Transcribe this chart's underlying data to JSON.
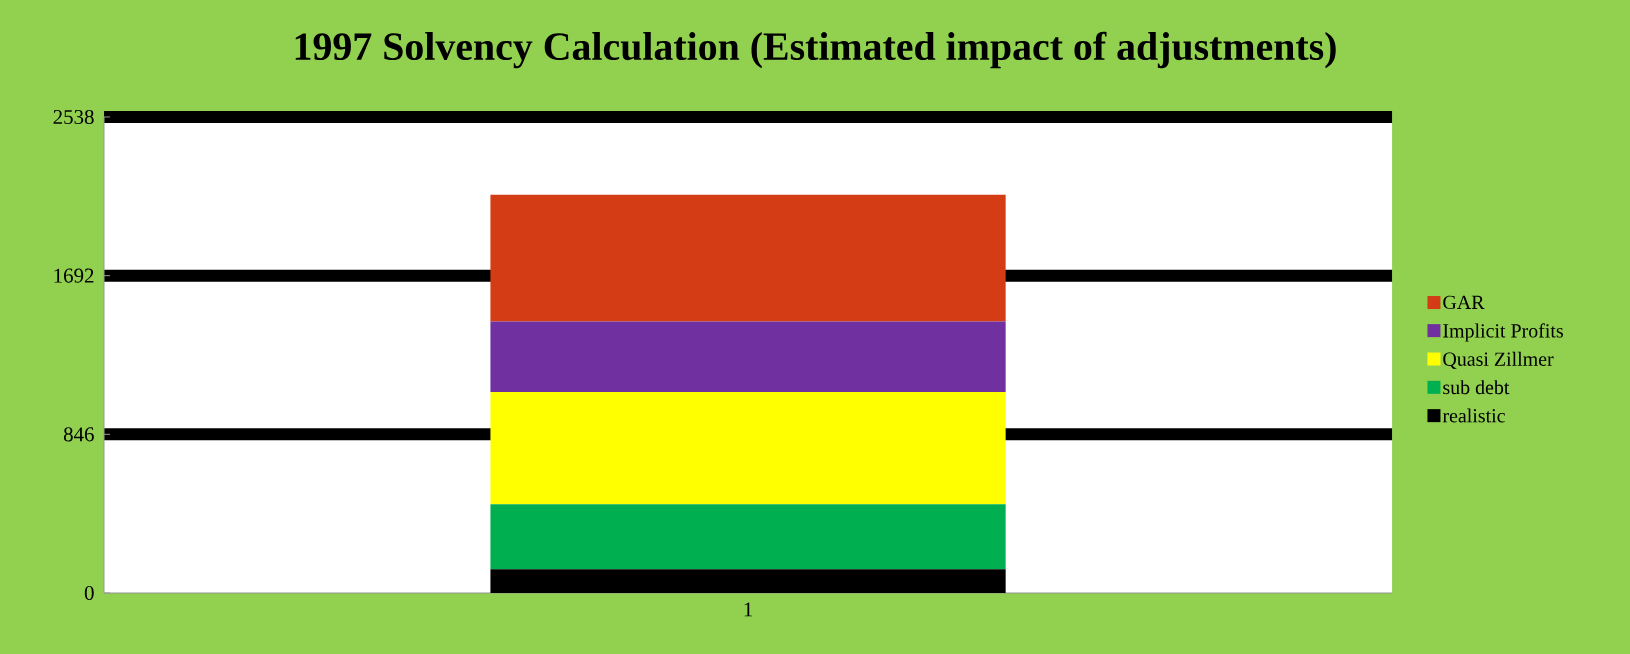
{
  "chart_data": {
    "type": "bar",
    "title": "1997 Solvency Calculation (Estimated impact of adjustments)",
    "categories": [
      "1"
    ],
    "stacked": true,
    "series": [
      {
        "name": "realistic",
        "color": "#000000",
        "values": [
          127
        ]
      },
      {
        "name": "sub debt",
        "color": "#00b050",
        "values": [
          346
        ]
      },
      {
        "name": "Quasi Zillmer",
        "color": "#ffff00",
        "values": [
          599
        ]
      },
      {
        "name": "Implicit Profits",
        "color": "#7030a0",
        "values": [
          375
        ]
      },
      {
        "name": "GAR",
        "color": "#d33c14",
        "values": [
          676
        ]
      }
    ],
    "ylim": [
      0,
      2538
    ],
    "yticks": [
      0,
      846,
      1692,
      2538
    ],
    "grid": "y",
    "legend": "right"
  }
}
